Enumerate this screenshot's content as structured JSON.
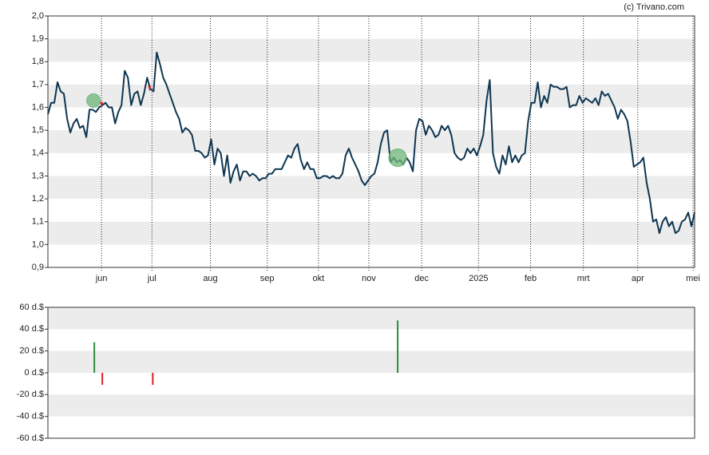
{
  "source": "(c) Trivano.com",
  "chart_data": [
    {
      "type": "line",
      "color": "#0e3651",
      "grid": true,
      "xlim": [
        0,
        202
      ],
      "ylim": [
        0.9,
        2.0
      ],
      "xticks": [
        {
          "value": 16.75,
          "label": "jun"
        },
        {
          "value": 32.5,
          "label": "jul"
        },
        {
          "value": 50.75,
          "label": "aug"
        },
        {
          "value": 68.5,
          "label": "sep"
        },
        {
          "value": 84.5,
          "label": "okt"
        },
        {
          "value": 100.25,
          "label": "nov"
        },
        {
          "value": 116.75,
          "label": "dec"
        },
        {
          "value": 134.5,
          "label": "2025"
        },
        {
          "value": 150.75,
          "label": "feb"
        },
        {
          "value": 167.25,
          "label": "mrt"
        },
        {
          "value": 184.25,
          "label": "apr"
        },
        {
          "value": 201.5,
          "label": "mei"
        }
      ],
      "yticks": [
        {
          "value": 0.9,
          "label": "0,9"
        },
        {
          "value": 1.0,
          "label": "1,0"
        },
        {
          "value": 1.1,
          "label": "1,1"
        },
        {
          "value": 1.2,
          "label": "1,2"
        },
        {
          "value": 1.3,
          "label": "1,3"
        },
        {
          "value": 1.4,
          "label": "1,4"
        },
        {
          "value": 1.5,
          "label": "1,5"
        },
        {
          "value": 1.6,
          "label": "1,6"
        },
        {
          "value": 1.7,
          "label": "1,7"
        },
        {
          "value": 1.8,
          "label": "1,8"
        },
        {
          "value": 1.9,
          "label": "1,9"
        },
        {
          "value": 2.0,
          "label": "2,0"
        }
      ],
      "values": [
        1.57,
        1.62,
        1.62,
        1.71,
        1.67,
        1.66,
        1.55,
        1.49,
        1.53,
        1.55,
        1.51,
        1.52,
        1.47,
        1.59,
        1.59,
        1.58,
        1.6,
        1.61,
        1.62,
        1.6,
        1.6,
        1.53,
        1.58,
        1.61,
        1.76,
        1.73,
        1.61,
        1.66,
        1.67,
        1.61,
        1.66,
        1.73,
        1.68,
        1.67,
        1.84,
        1.79,
        1.73,
        1.7,
        1.66,
        1.62,
        1.58,
        1.55,
        1.49,
        1.51,
        1.5,
        1.48,
        1.41,
        1.41,
        1.4,
        1.38,
        1.39,
        1.46,
        1.35,
        1.42,
        1.4,
        1.3,
        1.39,
        1.27,
        1.32,
        1.35,
        1.28,
        1.32,
        1.32,
        1.3,
        1.31,
        1.3,
        1.28,
        1.29,
        1.29,
        1.31,
        1.31,
        1.33,
        1.33,
        1.33,
        1.36,
        1.39,
        1.38,
        1.42,
        1.44,
        1.37,
        1.33,
        1.36,
        1.33,
        1.33,
        1.29,
        1.29,
        1.3,
        1.3,
        1.29,
        1.3,
        1.29,
        1.29,
        1.31,
        1.39,
        1.42,
        1.38,
        1.35,
        1.32,
        1.28,
        1.26,
        1.28,
        1.3,
        1.31,
        1.36,
        1.44,
        1.49,
        1.5,
        1.36,
        1.38,
        1.36,
        1.37,
        1.35,
        1.38,
        1.36,
        1.32,
        1.5,
        1.55,
        1.54,
        1.48,
        1.52,
        1.5,
        1.47,
        1.48,
        1.52,
        1.5,
        1.52,
        1.48,
        1.4,
        1.38,
        1.37,
        1.38,
        1.42,
        1.4,
        1.42,
        1.39,
        1.43,
        1.48,
        1.63,
        1.72,
        1.4,
        1.34,
        1.31,
        1.39,
        1.35,
        1.43,
        1.36,
        1.39,
        1.36,
        1.39,
        1.4,
        1.54,
        1.62,
        1.62,
        1.71,
        1.6,
        1.65,
        1.62,
        1.7,
        1.69,
        1.69,
        1.68,
        1.68,
        1.69,
        1.6,
        1.61,
        1.61,
        1.65,
        1.62,
        1.64,
        1.63,
        1.62,
        1.64,
        1.61,
        1.67,
        1.65,
        1.66,
        1.63,
        1.6,
        1.55,
        1.59,
        1.57,
        1.54,
        1.45,
        1.34,
        1.35,
        1.36,
        1.38,
        1.27,
        1.2,
        1.1,
        1.11,
        1.05,
        1.1,
        1.12,
        1.08,
        1.1,
        1.05,
        1.06,
        1.1,
        1.11,
        1.14,
        1.08,
        1.14
      ],
      "markers": [
        {
          "x": 14.25,
          "y": 1.63,
          "size": 28,
          "color": "#6fb57a"
        },
        {
          "x": 16.75,
          "y": 1.61,
          "size": -11,
          "color": "#d9222a"
        },
        {
          "x": 31.75,
          "y": 1.68,
          "size": -11,
          "color": "#d9222a"
        },
        {
          "x": 109.25,
          "y": 1.38,
          "size": 48,
          "color": "#6fb57a"
        }
      ]
    },
    {
      "type": "bar",
      "xlim": [
        0,
        202
      ],
      "ylim": [
        -60,
        60
      ],
      "grid": true,
      "yticks": [
        {
          "value": -60,
          "label": "-60 d.$"
        },
        {
          "value": -40,
          "label": "-40 d.$"
        },
        {
          "value": -20,
          "label": "-20 d.$"
        },
        {
          "value": 0,
          "label": "0 d.$"
        },
        {
          "value": 20,
          "label": "20 d.$"
        },
        {
          "value": 40,
          "label": "40 d.$"
        },
        {
          "value": 60,
          "label": "60 d.$"
        }
      ],
      "x": [
        14.5,
        17,
        32.75,
        109.25
      ],
      "values": [
        28,
        -11,
        -11,
        48
      ],
      "colors": [
        "#2e8b3e",
        "#d9222a",
        "#d9222a",
        "#2e8b3e"
      ]
    }
  ]
}
